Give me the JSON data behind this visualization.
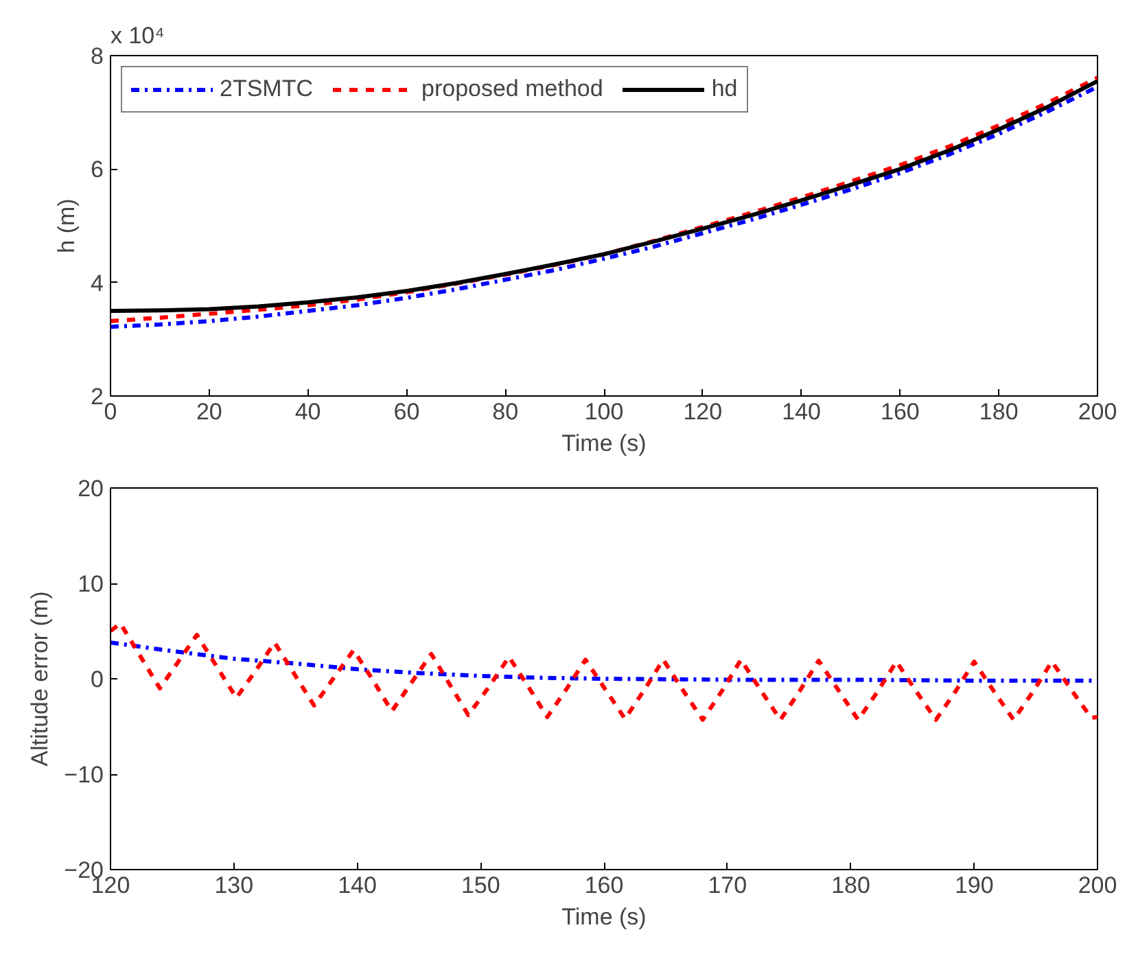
{
  "chart_data": [
    {
      "type": "line",
      "xlabel": "Time (s)",
      "ylabel": "h (m)",
      "annotations": [
        "x 10⁴"
      ],
      "xlim": [
        0,
        200
      ],
      "ylim": [
        2,
        8
      ],
      "xticks": [
        0,
        20,
        40,
        60,
        80,
        100,
        120,
        140,
        160,
        180,
        200
      ],
      "yticks": [
        2,
        4,
        6,
        8
      ],
      "grid": false,
      "legend": "top left",
      "x": [
        0,
        10,
        20,
        30,
        40,
        50,
        60,
        70,
        80,
        90,
        100,
        110,
        120,
        130,
        140,
        150,
        160,
        170,
        180,
        190,
        200
      ],
      "series": [
        {
          "name": "2TSMTC",
          "color": "#0000ff",
          "line_style": "dashdot",
          "values": [
            3.22,
            3.26,
            3.32,
            3.4,
            3.5,
            3.6,
            3.73,
            3.88,
            4.05,
            4.22,
            4.42,
            4.63,
            4.87,
            5.11,
            5.37,
            5.64,
            5.93,
            6.26,
            6.62,
            7.02,
            7.45
          ]
        },
        {
          "name": "proposed method",
          "color": "#ff0000",
          "line_style": "dashed",
          "values": [
            3.32,
            3.38,
            3.45,
            3.52,
            3.6,
            3.7,
            3.83,
            3.98,
            4.14,
            4.31,
            4.5,
            4.73,
            4.98,
            5.23,
            5.5,
            5.78,
            6.07,
            6.4,
            6.77,
            7.17,
            7.61
          ]
        },
        {
          "name": "hd",
          "color": "#000000",
          "line_style": "solid",
          "values": [
            3.5,
            3.51,
            3.53,
            3.58,
            3.65,
            3.74,
            3.85,
            3.99,
            4.15,
            4.32,
            4.5,
            4.72,
            4.95,
            5.19,
            5.45,
            5.72,
            6.0,
            6.33,
            6.7,
            7.1,
            7.55
          ]
        }
      ]
    },
    {
      "type": "line",
      "xlabel": "Time (s)",
      "ylabel": "Altitude error (m)",
      "xlim": [
        120,
        200
      ],
      "ylim": [
        -20,
        20
      ],
      "xticks": [
        120,
        130,
        140,
        150,
        160,
        170,
        180,
        190,
        200
      ],
      "yticks": [
        -20,
        -10,
        0,
        10,
        20
      ],
      "grid": false,
      "series": [
        {
          "color": "#0000ff",
          "line_style": "dashdot",
          "x": [
            120,
            125,
            130,
            135,
            140,
            145,
            150,
            155,
            160,
            170,
            180,
            190,
            200
          ],
          "values": [
            3.8,
            2.9,
            2.1,
            1.6,
            1.0,
            0.6,
            0.3,
            0.1,
            0.0,
            -0.1,
            -0.1,
            -0.2,
            -0.2
          ]
        },
        {
          "color": "#ff0000",
          "line_style": "dashed",
          "x": [
            120,
            120.8,
            122.4,
            124,
            125.5,
            127,
            128.6,
            130.2,
            131.8,
            133.3,
            134.9,
            136.5,
            138.1,
            139.7,
            141.3,
            142.8,
            144.4,
            146,
            147.5,
            149,
            150.7,
            152.3,
            153.9,
            155.4,
            157,
            158.5,
            160.1,
            161.7,
            163.3,
            164.8,
            166.4,
            168,
            169.6,
            171.1,
            172.7,
            174.3,
            175.9,
            177.4,
            179,
            180.6,
            182.2,
            183.7,
            185.3,
            186.9,
            188.5,
            190,
            191.6,
            193.2,
            194.8,
            196.3,
            197.9,
            199.5,
            200
          ],
          "values": [
            5.0,
            5.8,
            2.4,
            -1.0,
            1.8,
            4.6,
            1.3,
            -2.0,
            0.9,
            3.8,
            0.5,
            -2.8,
            0.1,
            3.0,
            -0.2,
            -3.4,
            -0.4,
            2.6,
            -0.6,
            -3.8,
            -0.8,
            2.3,
            -0.9,
            -4.0,
            -1.0,
            2.0,
            -1.1,
            -4.2,
            -1.1,
            2.0,
            -1.2,
            -4.3,
            -1.2,
            2.0,
            -1.2,
            -4.3,
            -1.2,
            1.9,
            -1.2,
            -4.3,
            -1.3,
            1.8,
            -1.3,
            -4.3,
            -1.3,
            1.8,
            -1.3,
            -4.3,
            -1.3,
            1.8,
            -1.2,
            -4.1,
            -4.0
          ]
        }
      ]
    }
  ]
}
